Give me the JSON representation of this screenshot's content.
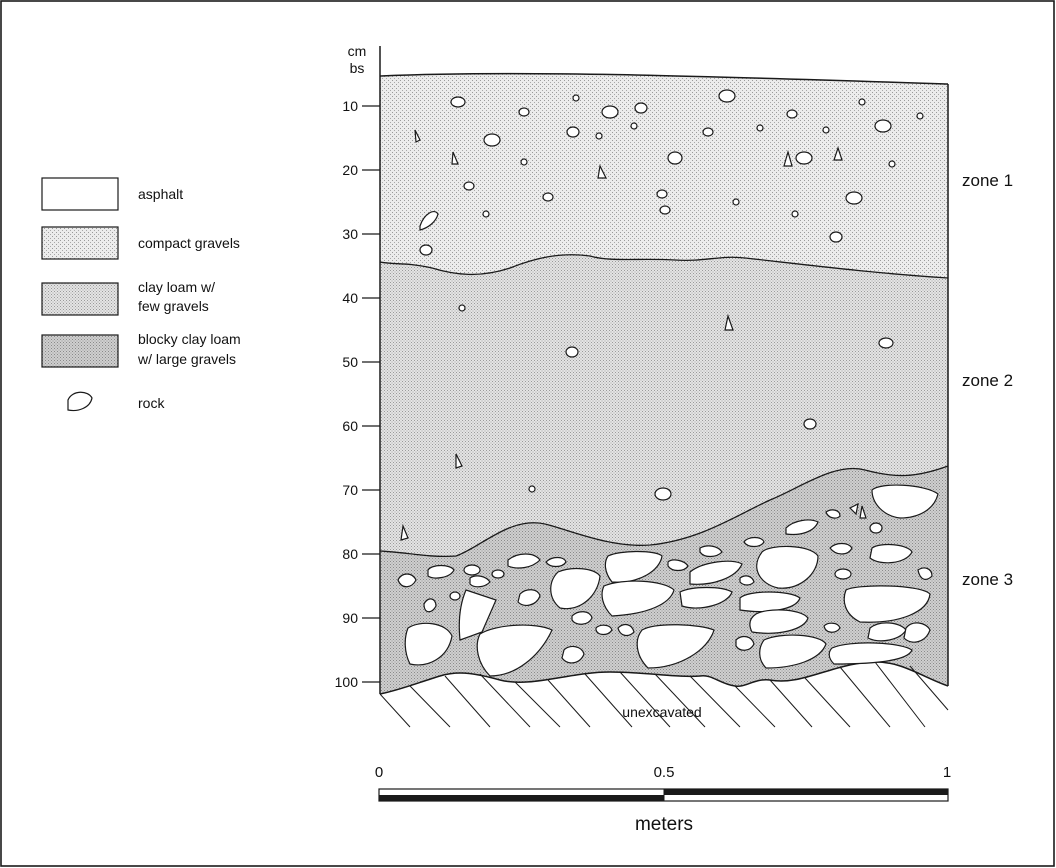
{
  "depth_axis": {
    "unit_line1": "cm",
    "unit_line2": "bs",
    "ticks": [
      "10",
      "20",
      "30",
      "40",
      "50",
      "60",
      "70",
      "80",
      "90",
      "100"
    ]
  },
  "legend": {
    "items": [
      {
        "label_lines": [
          "asphalt"
        ],
        "icon": "asphalt-swatch"
      },
      {
        "label_lines": [
          "compact gravels"
        ],
        "icon": "compact-gravels-swatch"
      },
      {
        "label_lines": [
          "clay loam w/",
          "few gravels"
        ],
        "icon": "clay-loam-swatch"
      },
      {
        "label_lines": [
          "blocky clay loam",
          "w/ large gravels"
        ],
        "icon": "blocky-clay-loam-swatch"
      },
      {
        "label_lines": [
          "rock"
        ],
        "icon": "rock-icon"
      }
    ]
  },
  "zones": [
    {
      "label": "zone 1"
    },
    {
      "label": "zone 2"
    },
    {
      "label": "zone 3"
    }
  ],
  "base_label": "unexcavated",
  "scale_bar": {
    "tick_labels": [
      "0",
      "0.5",
      "1"
    ],
    "unit": "meters"
  },
  "colors": {
    "compact_gravels": "#ebebeb",
    "clay_loam": "#e2e2e2",
    "blocky_clay_loam": "#cdcdcd",
    "line": "#1a1a1a"
  }
}
